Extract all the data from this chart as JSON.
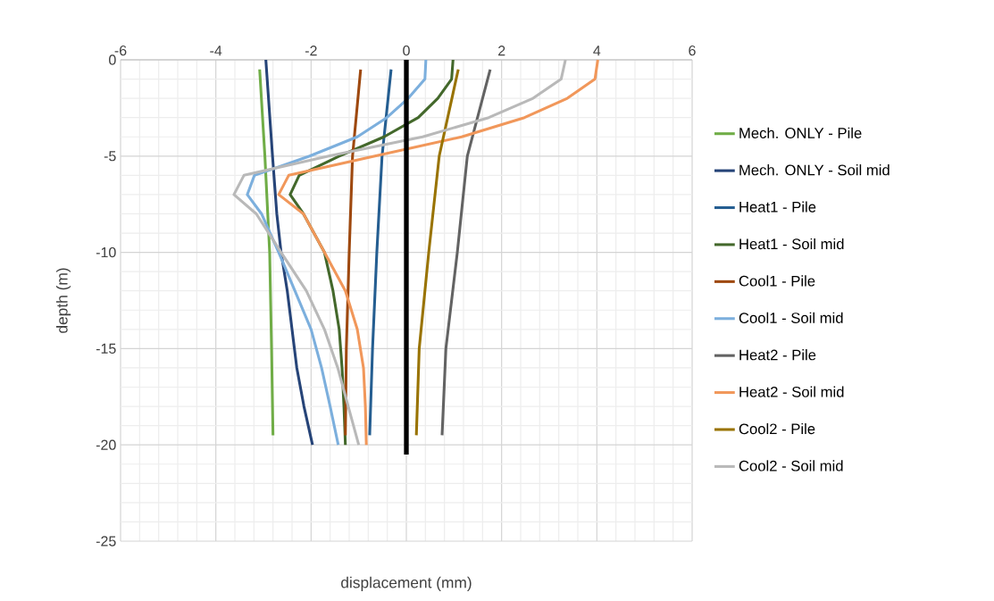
{
  "chart_data": {
    "type": "line",
    "xlabel": "displacement (mm)",
    "ylabel": "depth (m)",
    "xlim": [
      -6,
      6
    ],
    "xticks": [
      -6,
      -4,
      -2,
      0,
      2,
      4,
      6
    ],
    "ylim": [
      -25,
      0
    ],
    "yticks": [
      -25,
      -20,
      -15,
      -10,
      -5,
      0
    ],
    "grid": true,
    "legend": "right",
    "marker": "none",
    "line_style": "solid",
    "series": [
      {
        "name": "Mech. ONLY - Pile",
        "color": "#70ad47",
        "x": [
          -3.08,
          -2.97,
          -2.87,
          -2.83,
          -2.8
        ],
        "values": [
          -0.5,
          -5,
          -10,
          -15,
          -19.5
        ]
      },
      {
        "name": "Mech. ONLY - Soil mid",
        "color": "#264478",
        "x": [
          -2.95,
          -2.81,
          -2.72,
          -2.63,
          -2.5,
          -2.4,
          -2.3,
          -2.15,
          -1.97
        ],
        "values": [
          0,
          -5,
          -8,
          -10,
          -12,
          -14,
          -16,
          -18,
          -20
        ]
      },
      {
        "name": "Heat1 - Pile",
        "color": "#255e91",
        "x": [
          -0.32,
          -0.51,
          -0.62,
          -0.71,
          -0.77
        ],
        "values": [
          -0.5,
          -5,
          -10,
          -15,
          -19.5
        ]
      },
      {
        "name": "Heat1 - Soil mid",
        "color": "#43682b",
        "x": [
          0.98,
          0.95,
          0.66,
          0.25,
          -0.47,
          -1.41,
          -2.25,
          -2.44,
          -2.16,
          -1.72,
          -1.54,
          -1.41,
          -1.35,
          -1.31,
          -1.28
        ],
        "values": [
          0,
          -1,
          -2,
          -3,
          -4,
          -5,
          -6,
          -7,
          -8,
          -10,
          -12,
          -14,
          -16,
          -18,
          -20
        ]
      },
      {
        "name": "Cool1 - Pile",
        "color": "#9e480e",
        "x": [
          -0.96,
          -1.13,
          -1.2,
          -1.26,
          -1.28
        ],
        "values": [
          -0.5,
          -5,
          -10,
          -15,
          -19.5
        ]
      },
      {
        "name": "Cool1 - Soil mid",
        "color": "#7cafdd",
        "x": [
          0.41,
          0.39,
          0.04,
          -0.41,
          -1.03,
          -2.03,
          -3.19,
          -3.34,
          -3.04,
          -2.68,
          -2.34,
          -2.0,
          -1.78,
          -1.6,
          -1.43
        ],
        "values": [
          0,
          -1,
          -2,
          -3,
          -4,
          -5,
          -6,
          -7,
          -8,
          -10,
          -12,
          -14,
          -16,
          -18,
          -20
        ]
      },
      {
        "name": "Heat2 - Pile",
        "color": "#636363",
        "x": [
          1.76,
          1.28,
          1.07,
          0.83,
          0.75
        ],
        "values": [
          -0.5,
          -5,
          -10,
          -15,
          -19.5
        ]
      },
      {
        "name": "Heat2 - Soil mid",
        "color": "#f1975a",
        "x": [
          4.02,
          3.96,
          3.38,
          2.48,
          1.16,
          -0.66,
          -2.47,
          -2.68,
          -2.16,
          -1.72,
          -1.28,
          -1.03,
          -0.9,
          -0.86,
          -0.84
        ],
        "values": [
          0,
          -1,
          -2,
          -3,
          -4,
          -5,
          -6,
          -7,
          -8,
          -10,
          -12,
          -14,
          -16,
          -18,
          -20
        ]
      },
      {
        "name": "Cool2 - Pile",
        "color": "#997300",
        "x": [
          1.09,
          0.69,
          0.47,
          0.27,
          0.21
        ],
        "values": [
          -0.5,
          -5,
          -10,
          -15,
          -19.5
        ]
      },
      {
        "name": "Cool2 - Soil mid",
        "color": "#b9b9b9",
        "x": [
          3.34,
          3.25,
          2.66,
          1.73,
          0.34,
          -1.63,
          -3.41,
          -3.62,
          -3.15,
          -2.63,
          -2.1,
          -1.72,
          -1.44,
          -1.22,
          -1.0
        ],
        "values": [
          0,
          -1,
          -2,
          -3,
          -4,
          -5,
          -6,
          -7,
          -8,
          -10,
          -12,
          -14,
          -16,
          -18,
          -20
        ]
      },
      {
        "color": "#000000",
        "x": [
          0,
          0
        ],
        "values": [
          0,
          -20.5
        ]
      }
    ]
  }
}
